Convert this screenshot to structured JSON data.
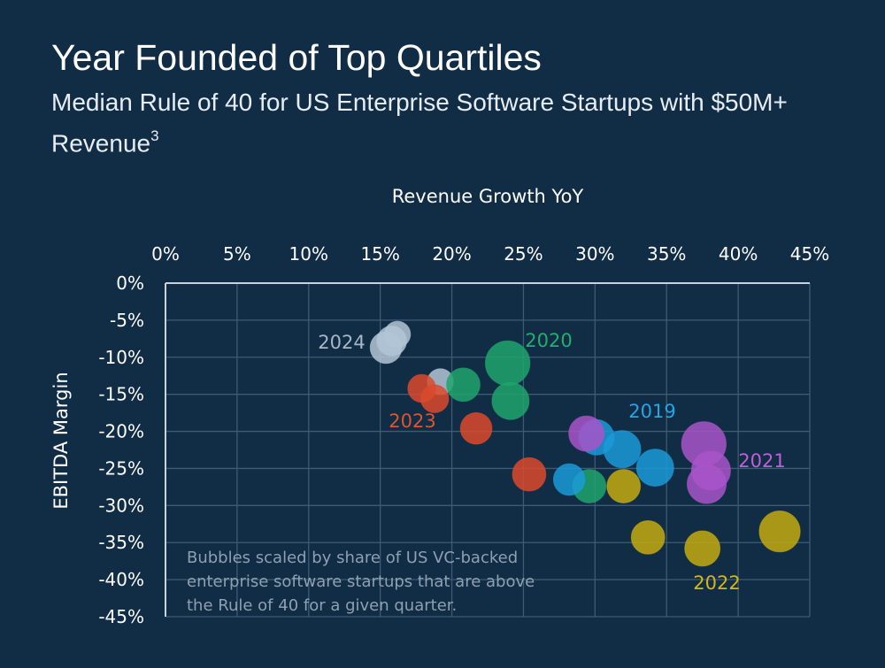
{
  "title": "Year Founded of Top Quartiles",
  "subtitle_main": "Median Rule of 40 for US Enterprise Software Startups with $50M+ Revenue",
  "subtitle_sup": "3",
  "chart_data": {
    "type": "scatter",
    "title": "Year Founded of Top Quartiles",
    "xlabel": "Revenue Growth YoY",
    "ylabel": "EBITDA Margin",
    "xlim": [
      0,
      45
    ],
    "ylim": [
      -45,
      0
    ],
    "x_ticks": [
      "0%",
      "5%",
      "10%",
      "15%",
      "20%",
      "25%",
      "30%",
      "35%",
      "40%",
      "45%"
    ],
    "y_ticks": [
      "0%",
      "-5%",
      "-10%",
      "-15%",
      "-20%",
      "-25%",
      "-30%",
      "-35%",
      "-40%",
      "-45%"
    ],
    "note": [
      "Bubbles scaled by share of US VC-backed",
      "enterprise software startups that are above",
      "the Rule of 40 for a given quarter."
    ],
    "series": [
      {
        "name": "2024",
        "color": "#b3c6d6",
        "points": [
          {
            "x": 16.2,
            "y": -6.9,
            "size": 1.4
          },
          {
            "x": 15.8,
            "y": -7.8,
            "size": 1.6
          },
          {
            "x": 15.4,
            "y": -8.7,
            "size": 1.7
          },
          {
            "x": 19.2,
            "y": -13.3,
            "size": 1.4
          }
        ]
      },
      {
        "name": "2020",
        "color": "#1fa56c",
        "points": [
          {
            "x": 23.9,
            "y": -10.8,
            "size": 2.4
          },
          {
            "x": 20.8,
            "y": -13.7,
            "size": 1.8
          },
          {
            "x": 24.1,
            "y": -15.9,
            "size": 2.0
          },
          {
            "x": 29.6,
            "y": -27.4,
            "size": 1.8
          }
        ]
      },
      {
        "name": "2023",
        "color": "#dc4a2c",
        "points": [
          {
            "x": 17.9,
            "y": -14.2,
            "size": 1.5
          },
          {
            "x": 18.8,
            "y": -15.6,
            "size": 1.5
          },
          {
            "x": 21.7,
            "y": -19.6,
            "size": 1.7
          },
          {
            "x": 25.4,
            "y": -25.8,
            "size": 1.8
          }
        ]
      },
      {
        "name": "2019",
        "color": "#1b9ad8",
        "points": [
          {
            "x": 30.1,
            "y": -20.8,
            "size": 1.9
          },
          {
            "x": 31.9,
            "y": -22.4,
            "size": 2.0
          },
          {
            "x": 34.2,
            "y": -24.9,
            "size": 2.0
          },
          {
            "x": 28.2,
            "y": -26.5,
            "size": 1.7
          }
        ]
      },
      {
        "name": "2021",
        "color": "#a855c9",
        "points": [
          {
            "x": 29.4,
            "y": -20.3,
            "size": 1.9
          },
          {
            "x": 37.6,
            "y": -21.7,
            "size": 2.4
          },
          {
            "x": 38.1,
            "y": -25.3,
            "size": 2.1
          },
          {
            "x": 37.8,
            "y": -27.1,
            "size": 2.1
          }
        ]
      },
      {
        "name": "2022",
        "color": "#c4aa0f",
        "points": [
          {
            "x": 32.0,
            "y": -27.4,
            "size": 1.8
          },
          {
            "x": 33.7,
            "y": -34.3,
            "size": 1.8
          },
          {
            "x": 37.5,
            "y": -35.8,
            "size": 1.9
          },
          {
            "x": 42.9,
            "y": -33.5,
            "size": 2.2
          }
        ]
      }
    ],
    "labels": [
      {
        "text": "2024",
        "series": "2024",
        "color": "#a7b7c6"
      },
      {
        "text": "2020",
        "series": "2020",
        "color": "#1fb070"
      },
      {
        "text": "2023",
        "series": "2023",
        "color": "#e0532f"
      },
      {
        "text": "2019",
        "series": "2019",
        "color": "#22a6e6"
      },
      {
        "text": "2021",
        "series": "2021",
        "color": "#c25ed8"
      },
      {
        "text": "2022",
        "series": "2022",
        "color": "#d4b717"
      }
    ]
  }
}
